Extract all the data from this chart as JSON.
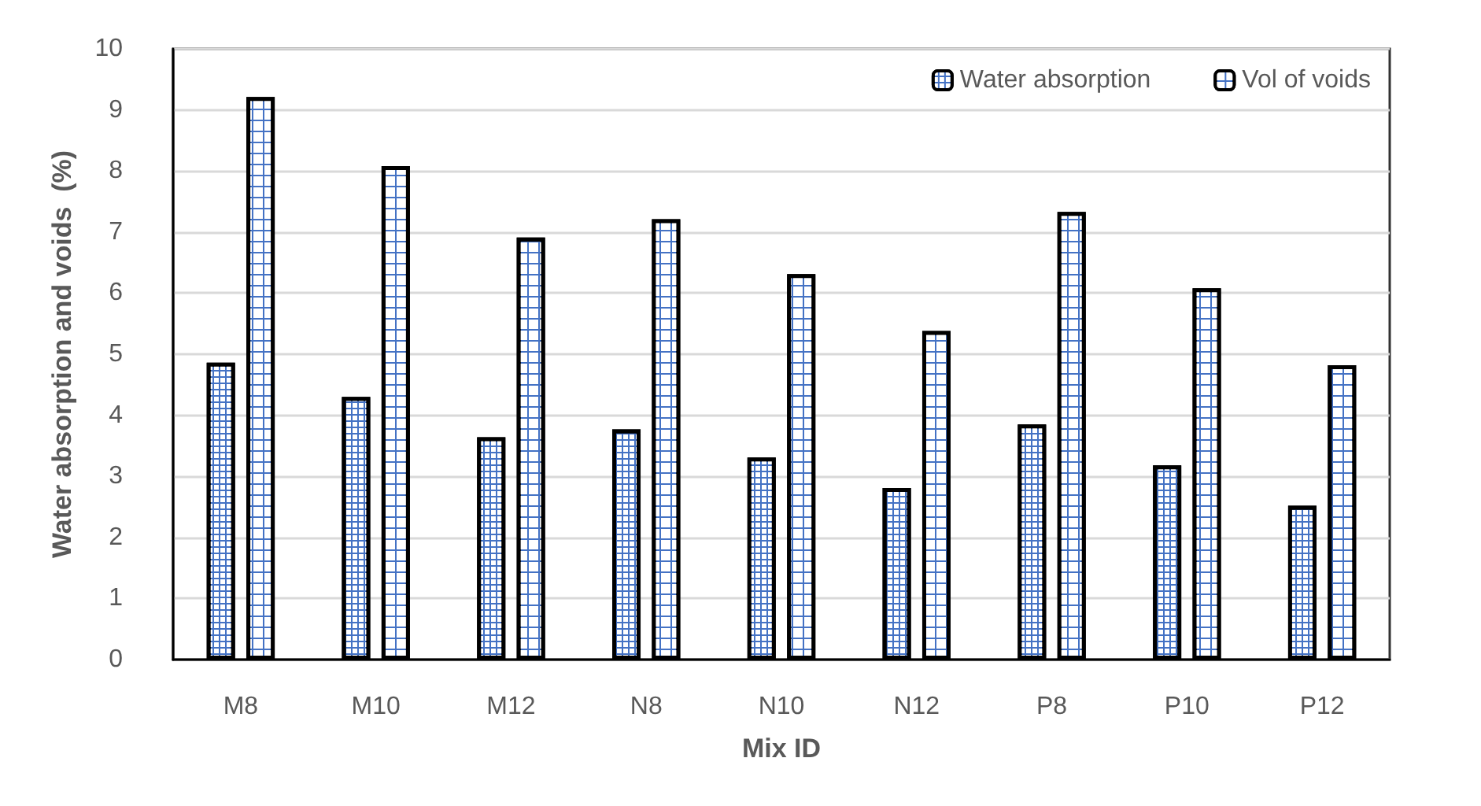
{
  "chart_data": {
    "type": "bar",
    "xlabel": "Mix ID",
    "ylabel": "Water absorption and voids  (%)",
    "categories": [
      "M8",
      "M10",
      "M12",
      "N8",
      "N10",
      "N12",
      "P8",
      "P10",
      "P12"
    ],
    "series": [
      {
        "name": "Water absorption",
        "color": "#4472c4",
        "values": [
          4.86,
          4.3,
          3.64,
          3.77,
          3.31,
          2.81,
          3.85,
          3.18,
          2.52
        ]
      },
      {
        "name": "Vol of voids",
        "color": "#4472c4",
        "values": [
          9.21,
          8.08,
          6.91,
          7.21,
          6.31,
          5.38,
          7.33,
          6.08,
          4.82
        ]
      }
    ],
    "ylim": [
      0,
      10
    ],
    "yticks": [
      0,
      1,
      2,
      3,
      4,
      5,
      6,
      7,
      8,
      9,
      10
    ],
    "grid": "y",
    "legend": "top right"
  }
}
